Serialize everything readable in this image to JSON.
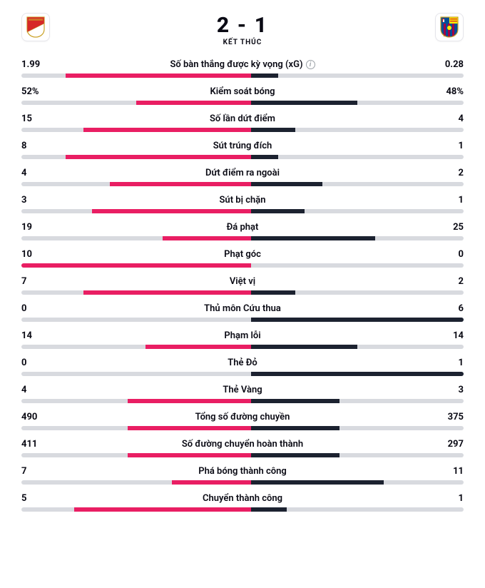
{
  "colors": {
    "home_bar": "#e91e63",
    "away_bar": "#1c2230",
    "track": "#d8dadf"
  },
  "header": {
    "score": "2 - 1",
    "status": "KẾT THÚC",
    "home_crest": "monaco",
    "away_crest": "barcelona"
  },
  "stats": [
    {
      "label": "Số bàn thắng được kỳ vọng (xG)",
      "home": "1.99",
      "away": "0.28",
      "home_pct": 48,
      "away_pct": 6,
      "home_start": 10,
      "away_start": 52,
      "info": true
    },
    {
      "label": "Kiểm soát bóng",
      "home": "52%",
      "away": "48%",
      "home_pct": 26,
      "away_pct": 24,
      "home_start": 26,
      "away_start": 52
    },
    {
      "label": "Số lần dứt điểm",
      "home": "15",
      "away": "4",
      "home_pct": 38,
      "away_pct": 10,
      "home_start": 14,
      "away_start": 52
    },
    {
      "label": "Sút trúng đích",
      "home": "8",
      "away": "1",
      "home_pct": 42,
      "away_pct": 6,
      "home_start": 10,
      "away_start": 52
    },
    {
      "label": "Dứt điểm ra ngoài",
      "home": "4",
      "away": "2",
      "home_pct": 32,
      "away_pct": 16,
      "home_start": 20,
      "away_start": 52
    },
    {
      "label": "Sút bị chặn",
      "home": "3",
      "away": "1",
      "home_pct": 36,
      "away_pct": 12,
      "home_start": 16,
      "away_start": 52
    },
    {
      "label": "Đá phạt",
      "home": "19",
      "away": "25",
      "home_pct": 20,
      "away_pct": 28,
      "home_start": 32,
      "away_start": 52
    },
    {
      "label": "Phạt góc",
      "home": "10",
      "away": "0",
      "home_pct": 52,
      "away_pct": 0,
      "home_start": 0,
      "away_start": 52
    },
    {
      "label": "Việt vị",
      "home": "7",
      "away": "2",
      "home_pct": 38,
      "away_pct": 10,
      "home_start": 14,
      "away_start": 52
    },
    {
      "label": "Thủ môn Cứu thua",
      "home": "0",
      "away": "6",
      "home_pct": 0,
      "away_pct": 48,
      "home_start": 52,
      "away_start": 52
    },
    {
      "label": "Phạm lỗi",
      "home": "14",
      "away": "14",
      "home_pct": 24,
      "away_pct": 24,
      "home_start": 28,
      "away_start": 52
    },
    {
      "label": "Thẻ Đỏ",
      "home": "0",
      "away": "1",
      "home_pct": 0,
      "away_pct": 48,
      "home_start": 52,
      "away_start": 52
    },
    {
      "label": "Thẻ Vàng",
      "home": "4",
      "away": "3",
      "home_pct": 28,
      "away_pct": 20,
      "home_start": 24,
      "away_start": 52
    },
    {
      "label": "Tổng số đường chuyền",
      "home": "490",
      "away": "375",
      "home_pct": 28,
      "away_pct": 20,
      "home_start": 24,
      "away_start": 52
    },
    {
      "label": "Số đường chuyển hoàn thành",
      "home": "411",
      "away": "297",
      "home_pct": 28,
      "away_pct": 20,
      "home_start": 24,
      "away_start": 52
    },
    {
      "label": "Phá bóng thành công",
      "home": "7",
      "away": "11",
      "home_pct": 18,
      "away_pct": 30,
      "home_start": 34,
      "away_start": 52
    },
    {
      "label": "Chuyển thành công",
      "home": "5",
      "away": "1",
      "home_pct": 40,
      "away_pct": 8,
      "home_start": 12,
      "away_start": 52
    }
  ]
}
